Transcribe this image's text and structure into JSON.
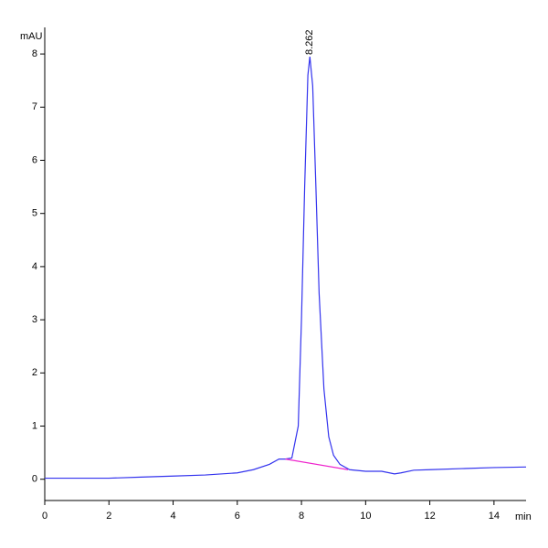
{
  "chart_data": {
    "type": "line",
    "y_label": "mAU",
    "x_label": "min",
    "annotation": "8.262",
    "x": [
      0,
      1,
      2,
      3,
      4,
      5,
      6,
      6.5,
      7,
      7.3,
      7.5,
      7.7,
      7.9,
      8.0,
      8.1,
      8.2,
      8.262,
      8.35,
      8.45,
      8.55,
      8.7,
      8.85,
      9.0,
      9.2,
      9.5,
      10,
      10.5,
      10.9,
      11.1,
      11.5,
      12,
      13,
      14,
      15
    ],
    "series": [
      {
        "color": "#3333ee",
        "values": [
          0.02,
          0.02,
          0.02,
          0.04,
          0.06,
          0.08,
          0.12,
          0.18,
          0.28,
          0.38,
          0.38,
          0.4,
          1.0,
          3.0,
          5.5,
          7.6,
          7.95,
          7.4,
          5.5,
          3.5,
          1.7,
          0.8,
          0.45,
          0.28,
          0.18,
          0.15,
          0.15,
          0.1,
          0.12,
          0.17,
          0.18,
          0.2,
          0.22,
          0.23
        ]
      },
      {
        "color": "#ee22cc",
        "x": [
          7.5,
          9.45
        ],
        "values": [
          0.38,
          0.18
        ]
      }
    ],
    "annotation_x": 8.262,
    "xlim": [
      0,
      15
    ],
    "ylim": [
      -0.4,
      8.5
    ],
    "xticks": [
      0,
      2,
      4,
      6,
      8,
      10,
      12,
      14
    ],
    "yticks": [
      0,
      1,
      2,
      3,
      4,
      5,
      6,
      7,
      8
    ]
  }
}
